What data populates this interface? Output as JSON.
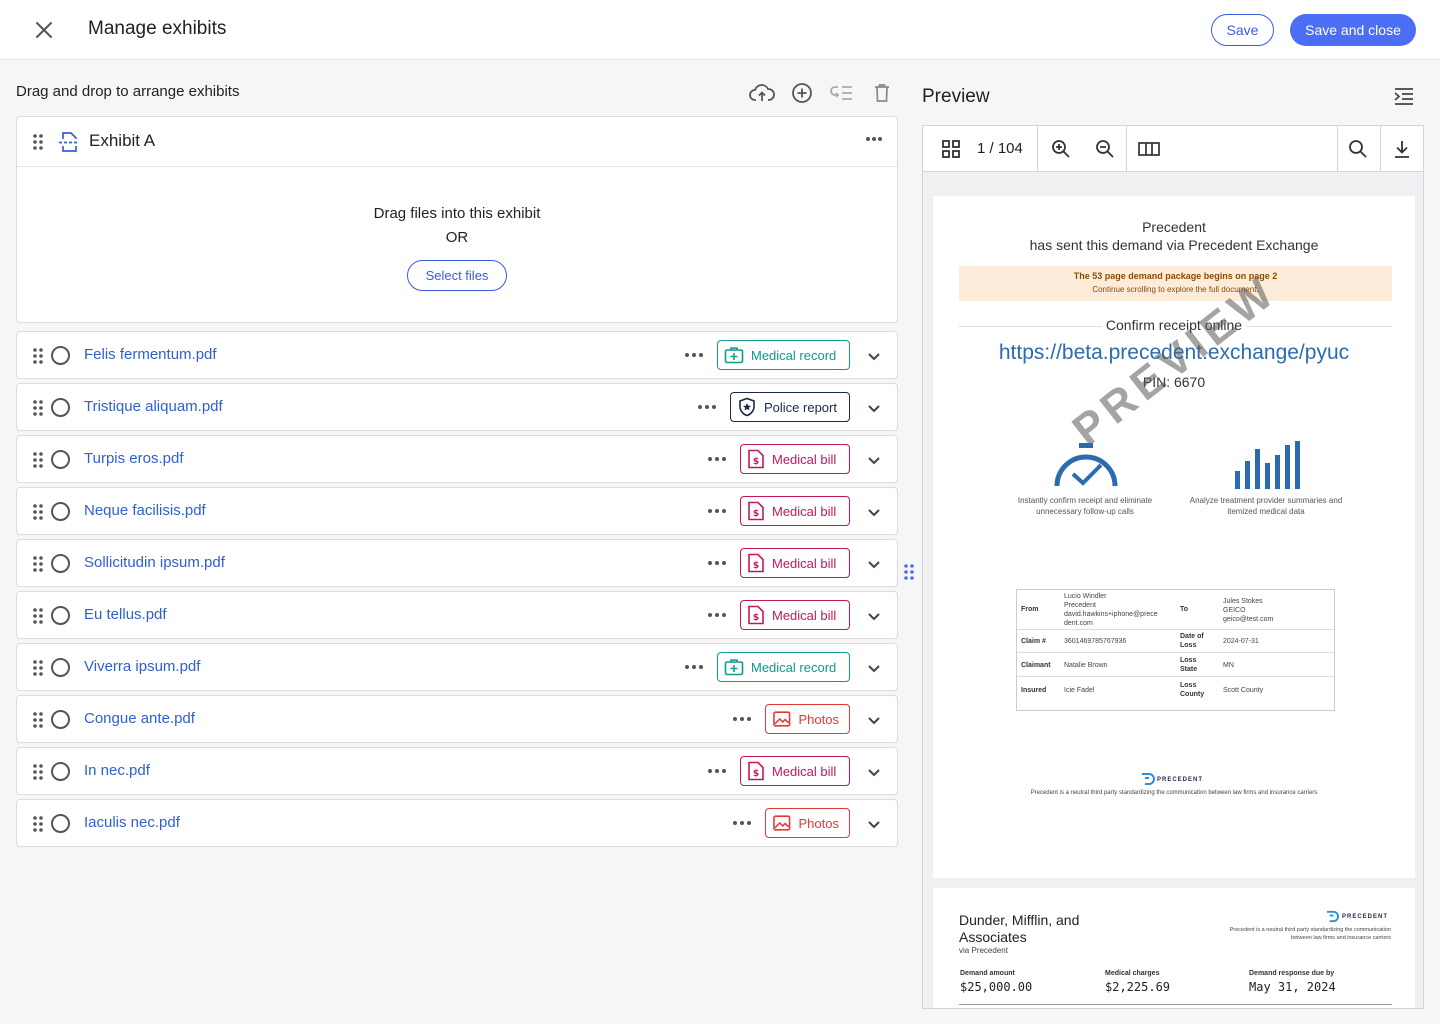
{
  "header": {
    "title": "Manage exhibits",
    "save_label": "Save",
    "save_close_label": "Save and close",
    "accent_color": "#4c6ef5"
  },
  "left": {
    "title": "Drag and drop to arrange exhibits",
    "toolbar_icons": [
      "cloud-upload-icon",
      "add-circle-icon",
      "collapse-list-icon",
      "trash-icon"
    ],
    "exhibit": {
      "name": "Exhibit A",
      "drop_line1": "Drag files into this exhibit",
      "drop_line2": "OR",
      "select_files_label": "Select files"
    },
    "files": [
      {
        "name": "Felis fermentum.pdf",
        "tag": "Medical record",
        "tag_kind": "record"
      },
      {
        "name": "Tristique aliquam.pdf",
        "tag": "Police report",
        "tag_kind": "police"
      },
      {
        "name": "Turpis eros.pdf",
        "tag": "Medical bill",
        "tag_kind": "bill"
      },
      {
        "name": "Neque facilisis.pdf",
        "tag": "Medical bill",
        "tag_kind": "bill"
      },
      {
        "name": "Sollicitudin ipsum.pdf",
        "tag": "Medical bill",
        "tag_kind": "bill"
      },
      {
        "name": "Eu tellus.pdf",
        "tag": "Medical bill",
        "tag_kind": "bill"
      },
      {
        "name": "Viverra ipsum.pdf",
        "tag": "Medical record",
        "tag_kind": "record"
      },
      {
        "name": "Congue ante.pdf",
        "tag": "Photos",
        "tag_kind": "photos"
      },
      {
        "name": "In nec.pdf",
        "tag": "Medical bill",
        "tag_kind": "bill"
      },
      {
        "name": "Iaculis nec.pdf",
        "tag": "Photos",
        "tag_kind": "photos"
      }
    ],
    "tag_colors": {
      "record": "#0f9b8e",
      "police": "#1c2a4a",
      "bill": "#c2185b",
      "photos": "#e53935"
    }
  },
  "preview": {
    "title": "Preview",
    "page_indicator": "1 / 104",
    "page1": {
      "sender": "Precedent",
      "sent_line": "has sent this demand via Precedent Exchange",
      "notice_title": "The 53 page demand package begins on page 2",
      "notice_sub": "Continue scrolling to explore the full document.",
      "confirm_label": "Confirm receipt online",
      "link": "https://beta.precedent.exchange/pyuc",
      "pin": "PIN: 6670",
      "watermark": "PREVIEW",
      "feature1": "Instantly confirm receipt and eliminate unnecessary follow-up calls",
      "feature2": "Analyze treatment provider summaries and itemized medical data",
      "table": {
        "from_label": "From",
        "from_value": [
          "Lucio Windler",
          "Precedent",
          "david.hawkins+iphone@prece",
          "dent.com"
        ],
        "to_label": "To",
        "to_value": [
          "Jules Stokes",
          "GEICO",
          "geico@test.com"
        ],
        "claim_label": "Claim #",
        "claim_value": "3601469785767936",
        "dol_label": [
          "Date of",
          "Loss"
        ],
        "dol_value": "2024-07-31",
        "claimant_label": "Claimant",
        "claimant_value": "Natalie Brown",
        "loss_state_label": [
          "Loss",
          "State"
        ],
        "loss_state_value": "MN",
        "insured_label": "Insured",
        "insured_value": "Icie Fadel",
        "loss_county_label": [
          "Loss",
          "County"
        ],
        "loss_county_value": "Scott County"
      },
      "brand": "PRECEDENT",
      "footer": "Precedent is a neutral third party standardizing the communication between law firms and insurance carriers"
    },
    "page2": {
      "firm": [
        "Dunder, Mifflin, and",
        "Associates"
      ],
      "via": "via Precedent",
      "brand": "PRECEDENT",
      "tagline": [
        "Precedent is a neutral third party standardizing the communication",
        "between law firms and insurance carriers"
      ],
      "demand_amount_label": "Demand amount",
      "demand_amount": "$25,000.00",
      "medical_charges_label": "Medical charges",
      "medical_charges": "$2,225.69",
      "due_label": "Demand response due by",
      "due": "May 31, 2024"
    }
  }
}
